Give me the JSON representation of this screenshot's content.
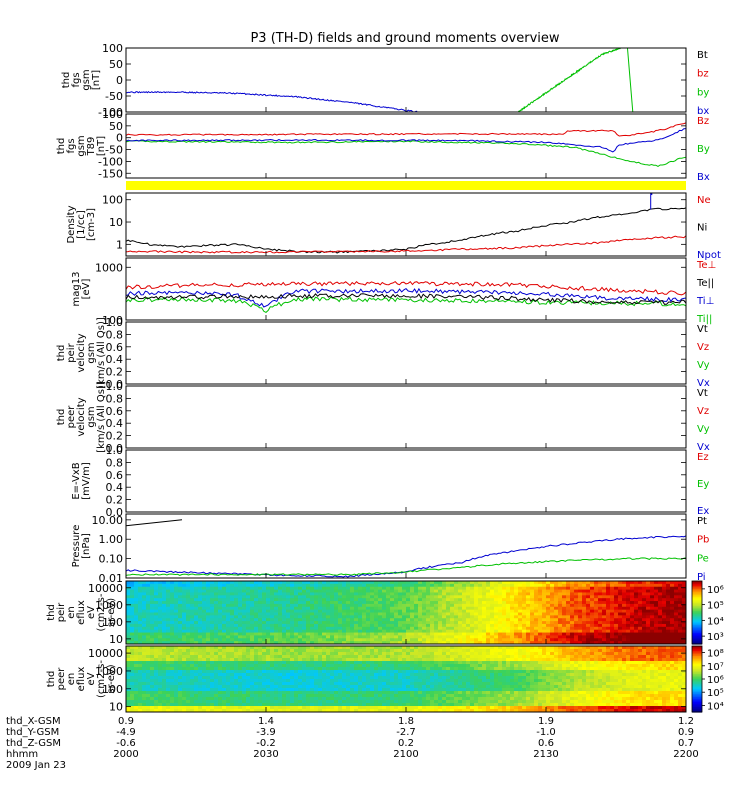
{
  "title": "P3 (TH-D) fields and ground moments overview",
  "colors": {
    "black": "#000000",
    "red": "#e00000",
    "green": "#00c000",
    "blue": "#0000d0",
    "yellow": "#ffff00"
  },
  "chart_data": [
    {
      "id": "fgs",
      "type": "line",
      "ylabel_lines": [
        "thd",
        "fgs",
        "gsm",
        "[nT]"
      ],
      "yticks": [
        "100",
        "50",
        "0",
        "-50",
        "-100"
      ],
      "ylim": [
        -100,
        100
      ],
      "legend": [
        {
          "label": "Bt",
          "color": "#000000"
        },
        {
          "label": "bz",
          "color": "#e00000"
        },
        {
          "label": "by",
          "color": "#00c000"
        },
        {
          "label": "bx",
          "color": "#0000d0"
        }
      ],
      "series": [
        {
          "name": "bx",
          "color": "#0000d0",
          "x": [
            0,
            0.1,
            0.2,
            0.3,
            0.4,
            0.52
          ],
          "y": [
            -38,
            -38,
            -42,
            -52,
            -70,
            -100
          ]
        },
        {
          "name": "by",
          "color": "#00c000",
          "x": [
            0.7,
            0.75,
            0.8,
            0.85,
            0.9
          ],
          "y": [
            -100,
            -40,
            20,
            80,
            110
          ]
        },
        {
          "name": "by",
          "color": "#00c000",
          "x": [
            0.895,
            0.905
          ],
          "y": [
            110,
            -100
          ]
        }
      ]
    },
    {
      "id": "fgsa",
      "type": "line",
      "ylabel_lines": [
        "thd",
        "fgs",
        "gsm",
        "T89",
        "[nT]"
      ],
      "yticks": [
        "100",
        "50",
        "0",
        "-50",
        "-100",
        "-150"
      ],
      "ylim": [
        -170,
        100
      ],
      "legend": [
        {
          "label": "Bz",
          "color": "#e00000"
        },
        {
          "label": "By",
          "color": "#00c000"
        },
        {
          "label": "Bx",
          "color": "#0000d0"
        }
      ],
      "series": [
        {
          "name": "Bz",
          "color": "#e00000",
          "x": [
            0,
            0.3,
            0.6,
            0.78,
            0.79,
            0.87,
            0.88,
            0.93,
            0.96,
            0.98,
            1.0
          ],
          "y": [
            12,
            14,
            16,
            15,
            28,
            30,
            5,
            20,
            35,
            50,
            60
          ]
        },
        {
          "name": "By",
          "color": "#00c000",
          "x": [
            0,
            0.3,
            0.5,
            0.7,
            0.8,
            0.85,
            0.9,
            0.95,
            1.0
          ],
          "y": [
            -15,
            -20,
            -15,
            -25,
            -40,
            -70,
            -100,
            -120,
            -80
          ]
        },
        {
          "name": "Bx",
          "color": "#0000d0",
          "x": [
            0,
            0.3,
            0.6,
            0.75,
            0.85,
            0.87,
            0.88,
            0.95,
            0.97,
            1.0
          ],
          "y": [
            -12,
            -10,
            -12,
            -20,
            -40,
            -60,
            -30,
            -10,
            10,
            40
          ]
        }
      ]
    },
    {
      "id": "state_bar",
      "type": "bar",
      "color": "#ffff00"
    },
    {
      "id": "density",
      "type": "line",
      "yscale": "log",
      "ylabel_lines": [
        "Density",
        "[1/cc]",
        "[cm-3]"
      ],
      "yticks": [
        "100",
        "10",
        "1"
      ],
      "ytick_values": [
        100,
        10,
        1
      ],
      "ylim": [
        0.3,
        200
      ],
      "legend": [
        {
          "label": "Ne",
          "color": "#e00000"
        },
        {
          "label": "Ni",
          "color": "#000000"
        },
        {
          "label": "Npot",
          "color": "#0000d0"
        }
      ],
      "series": [
        {
          "name": "Ni",
          "color": "#000000",
          "x": [
            0,
            0.05,
            0.1,
            0.2,
            0.2,
            0.25,
            0.32,
            0.4,
            0.5,
            0.6,
            0.7,
            0.8,
            0.9,
            0.95,
            1.0
          ],
          "y": [
            1.5,
            0.9,
            0.8,
            1.0,
            1.0,
            0.6,
            0.45,
            0.45,
            0.6,
            1.5,
            4,
            10,
            25,
            38,
            40
          ]
        },
        {
          "name": "Ne",
          "color": "#e00000",
          "x": [
            0,
            0.1,
            0.3,
            0.5,
            0.7,
            0.85,
            0.95,
            1.0
          ],
          "y": [
            0.5,
            0.45,
            0.45,
            0.5,
            0.7,
            1.2,
            2.0,
            2.2
          ]
        },
        {
          "name": "Npot",
          "color": "#0000d0",
          "x": [
            0.937,
            0.937,
            0.939,
            0.939
          ],
          "y": [
            40,
            180,
            180,
            1.4
          ]
        }
      ]
    },
    {
      "id": "temperature",
      "type": "line",
      "yscale": "log",
      "ylabel_lines": [
        "mag13",
        "[eV]"
      ],
      "yticks": [
        "1000",
        "100"
      ],
      "ytick_values": [
        1000,
        100
      ],
      "ylim": [
        100,
        1500
      ],
      "legend": [
        {
          "label": "Te⊥",
          "color": "#e00000"
        },
        {
          "label": "Te||",
          "color": "#000000"
        },
        {
          "label": "Ti⊥",
          "color": "#0000d0"
        },
        {
          "label": "Ti||",
          "color": "#00c000"
        }
      ],
      "series": [
        {
          "name": "Te⊥",
          "color": "#e00000",
          "x": [
            0,
            0.1,
            0.3,
            0.5,
            0.7,
            0.85,
            1.0
          ],
          "y": [
            420,
            450,
            480,
            500,
            460,
            380,
            320
          ]
        },
        {
          "name": "Ti⊥",
          "color": "#0000d0",
          "x": [
            0,
            0.1,
            0.2,
            0.2,
            0.25,
            0.3,
            0.5,
            0.7,
            0.85,
            1.0
          ],
          "y": [
            320,
            330,
            300,
            280,
            180,
            350,
            360,
            330,
            260,
            240
          ]
        },
        {
          "name": "Ti||",
          "color": "#00c000",
          "x": [
            0,
            0.1,
            0.2,
            0.25,
            0.3,
            0.5,
            0.7,
            0.85,
            1.0
          ],
          "y": [
            240,
            250,
            230,
            150,
            250,
            240,
            220,
            210,
            200
          ]
        },
        {
          "name": "Te||",
          "color": "#000000",
          "x": [
            0,
            0.2,
            0.4,
            0.6,
            0.8,
            0.9,
            1.0
          ],
          "y": [
            270,
            280,
            290,
            280,
            230,
            210,
            220
          ]
        }
      ]
    },
    {
      "id": "peir_vel",
      "type": "line",
      "ylabel_lines": [
        "thd",
        "peir",
        "velocity",
        "gsm",
        "[km/s (All Qs)]"
      ],
      "yticks": [
        "1.0",
        "0.8",
        "0.6",
        "0.4",
        "0.2",
        "0.0"
      ],
      "ylim": [
        0,
        1
      ],
      "legend": [
        {
          "label": "Vt",
          "color": "#000000"
        },
        {
          "label": "Vz",
          "color": "#e00000"
        },
        {
          "label": "Vy",
          "color": "#00c000"
        },
        {
          "label": "Vx",
          "color": "#0000d0"
        }
      ],
      "series": []
    },
    {
      "id": "peer_vel",
      "type": "line",
      "ylabel_lines": [
        "thd",
        "peer",
        "velocity",
        "gsm",
        "[km/s (All Qs)]"
      ],
      "yticks": [
        "1.0",
        "0.8",
        "0.6",
        "0.4",
        "0.2",
        "0.0"
      ],
      "ylim": [
        0,
        1
      ],
      "legend": [
        {
          "label": "Vt",
          "color": "#000000"
        },
        {
          "label": "Vz",
          "color": "#e00000"
        },
        {
          "label": "Vy",
          "color": "#00c000"
        },
        {
          "label": "Vx",
          "color": "#0000d0"
        }
      ],
      "series": []
    },
    {
      "id": "efield",
      "type": "line",
      "ylabel_lines": [
        "E=-VxB",
        "[mV/m]"
      ],
      "yticks": [
        "1.0",
        "0.8",
        "0.6",
        "0.4",
        "0.2",
        "0.0"
      ],
      "ylim": [
        0,
        1
      ],
      "legend": [
        {
          "label": "Ez",
          "color": "#e00000"
        },
        {
          "label": "Ey",
          "color": "#00c000"
        },
        {
          "label": "Ex",
          "color": "#0000d0"
        }
      ],
      "series": []
    },
    {
      "id": "pressure",
      "type": "line",
      "yscale": "log",
      "ylabel_lines": [
        "Pressure",
        "[nPa]"
      ],
      "yticks": [
        "10.00",
        "1.00",
        "0.10",
        "0.01"
      ],
      "ytick_values": [
        10,
        1,
        0.1,
        0.01
      ],
      "ylim": [
        0.01,
        20
      ],
      "legend": [
        {
          "label": "Pt",
          "color": "#000000"
        },
        {
          "label": "Pb",
          "color": "#e00000"
        },
        {
          "label": "Pe",
          "color": "#00c000"
        },
        {
          "label": "Pi",
          "color": "#0000d0"
        }
      ],
      "series": [
        {
          "name": "Pt",
          "color": "#000000",
          "x": [
            0,
            0.05,
            0.1
          ],
          "y": [
            5,
            7,
            10
          ]
        },
        {
          "name": "Pi",
          "color": "#0000d0",
          "x": [
            0,
            0.1,
            0.2,
            0.3,
            0.4,
            0.5,
            0.6,
            0.7,
            0.8,
            0.9,
            0.95,
            1.0
          ],
          "y": [
            0.025,
            0.02,
            0.016,
            0.013,
            0.012,
            0.02,
            0.06,
            0.25,
            0.6,
            1.1,
            1.3,
            1.4
          ]
        },
        {
          "name": "Pe",
          "color": "#00c000",
          "x": [
            0,
            0.2,
            0.4,
            0.5,
            0.6,
            0.7,
            0.8,
            0.9,
            1.0
          ],
          "y": [
            0.015,
            0.015,
            0.015,
            0.02,
            0.035,
            0.06,
            0.08,
            0.1,
            0.1
          ]
        }
      ]
    },
    {
      "id": "peir_spec",
      "type": "heatmap",
      "ylabel_lines": [
        "thd",
        "peir",
        "en",
        "eflux",
        "eV",
        "(cm2-s-",
        "sr-eV)"
      ],
      "yticks": [
        "10000",
        "1000",
        "100",
        "10"
      ],
      "ytick_values": [
        10000,
        1000,
        100,
        10
      ],
      "ylim": [
        5,
        25000
      ],
      "colorbar_ticks": [
        "10⁶",
        "10⁵",
        "10⁴",
        "10³"
      ],
      "colorbar_values": [
        6,
        5,
        4,
        3
      ],
      "colorbar_range": [
        2.5,
        6.5
      ],
      "x_profile": [
        0,
        0.3,
        0.5,
        0.6,
        0.7,
        0.8,
        0.9,
        1.0
      ],
      "level_profile": [
        4.1,
        4.3,
        4.6,
        5.0,
        5.5,
        6.0,
        6.3,
        6.5
      ]
    },
    {
      "id": "peer_spec",
      "type": "heatmap",
      "ylabel_lines": [
        "thd",
        "peer",
        "en",
        "eflux",
        "eV",
        "(cm2-s-",
        "sr-eV)"
      ],
      "yticks": [
        "10000",
        "1000",
        "100",
        "10"
      ],
      "ytick_values": [
        10000,
        1000,
        100,
        10
      ],
      "ylim": [
        5,
        25000
      ],
      "colorbar_ticks": [
        "10⁸",
        "10⁷",
        "10⁶",
        "10⁵",
        "10⁴"
      ],
      "colorbar_values": [
        8,
        7,
        6,
        5,
        4
      ],
      "colorbar_range": [
        3.5,
        8.5
      ],
      "x_profile": [
        0,
        0.3,
        0.5,
        0.7,
        0.8,
        0.9,
        1.0
      ],
      "level_profile": [
        6.0,
        5.8,
        5.9,
        6.4,
        6.9,
        7.2,
        7.3
      ]
    }
  ],
  "xaxis": {
    "row_labels": [
      "thd_X-GSM",
      "thd_Y-GSM",
      "thd_Z-GSM",
      "hhmm",
      "2009 Jan 23"
    ],
    "columns": [
      [
        "0.9",
        "-4.9",
        "-0.6",
        "2000"
      ],
      [
        "1.4",
        "-3.9",
        "-0.2",
        "2030"
      ],
      [
        "1.8",
        "-2.7",
        "0.2",
        "2100"
      ],
      [
        "1.9",
        "-1.0",
        "0.6",
        "2130"
      ],
      [
        "1.2",
        "0.9",
        "0.7",
        "2200"
      ]
    ]
  }
}
